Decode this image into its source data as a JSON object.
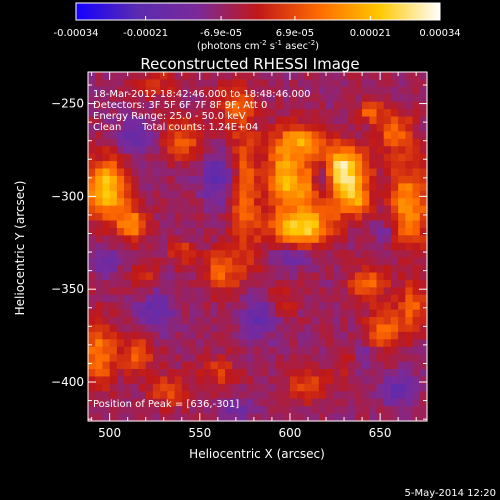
{
  "chart_data": {
    "type": "heatmap",
    "title": "Reconstructed RHESSI Image",
    "xlabel": "Heliocentric X (arcsec)",
    "ylabel": "Heliocentric Y (arcsec)",
    "xlim": [
      488,
      676
    ],
    "ylim": [
      -421,
      -233
    ],
    "x_ticks": [
      500,
      550,
      600,
      650
    ],
    "y_ticks": [
      -250,
      -300,
      -350,
      -400
    ],
    "colorbar": {
      "range": [
        -0.00034,
        0.00034
      ],
      "tick_values": [
        -0.00034,
        -0.00021,
        -6.9e-05,
        6.9e-05,
        0.00021,
        0.00034
      ],
      "tick_labels": [
        "-0.00034",
        "-0.00021",
        "-6.9e-05",
        "6.9e-05",
        "0.00021",
        "0.00034"
      ],
      "unit": "(photons cm",
      "unit_sup1": "-2",
      "unit_mid": " s",
      "unit_sup2": "-1",
      "unit_mid2": " asec",
      "unit_sup3": "-2",
      "unit_end": ")",
      "colormap": [
        "#1500ff",
        "#5a2bb0",
        "#7a2a9a",
        "#c01818",
        "#ff6a00",
        "#ffc800",
        "#ffffff"
      ]
    },
    "annotations": {
      "time": "18-Mar-2012 18:42:46.000 to 18:48:46.000",
      "detectors": "Detectors: 3F 5F 6F 7F 8F 9F, Att 0",
      "energy": "Energy Range: 25.0 - 50.0 keV",
      "method": "Clean",
      "counts": "Total counts: 1.24E+04",
      "peak": "Position of Peak = [636,-301]"
    },
    "peak_position": [
      636,
      -301
    ],
    "blobs": [
      {
        "x": 616,
        "y": -296,
        "sx": 9,
        "sy": 13,
        "v": 0.00034
      },
      {
        "x": 630,
        "y": -285,
        "sx": 9,
        "sy": 8,
        "v": 0.0003
      },
      {
        "x": 605,
        "y": -318,
        "sx": 11,
        "sy": 6,
        "v": 0.00026
      },
      {
        "x": 596,
        "y": -290,
        "sx": 6,
        "sy": 14,
        "v": 0.00024
      },
      {
        "x": 607,
        "y": -270,
        "sx": 9,
        "sy": 6,
        "v": 0.0002
      },
      {
        "x": 636,
        "y": -301,
        "sx": 6,
        "sy": 7,
        "v": 0.00022
      },
      {
        "x": 498,
        "y": -296,
        "sx": 8,
        "sy": 11,
        "v": 0.0003
      },
      {
        "x": 512,
        "y": -315,
        "sx": 6,
        "sy": 6,
        "v": 0.00022
      },
      {
        "x": 666,
        "y": -305,
        "sx": 8,
        "sy": 16,
        "v": 0.00022
      },
      {
        "x": 658,
        "y": -265,
        "sx": 7,
        "sy": 8,
        "v": 0.00016
      },
      {
        "x": 575,
        "y": -295,
        "sx": 6,
        "sy": 30,
        "v": 0.00016
      },
      {
        "x": 562,
        "y": -340,
        "sx": 7,
        "sy": 8,
        "v": 0.00015
      },
      {
        "x": 540,
        "y": -270,
        "sx": 8,
        "sy": 8,
        "v": 0.00014
      },
      {
        "x": 568,
        "y": -250,
        "sx": 8,
        "sy": 6,
        "v": 0.00012
      },
      {
        "x": 643,
        "y": -348,
        "sx": 7,
        "sy": 6,
        "v": 0.00018
      },
      {
        "x": 652,
        "y": -372,
        "sx": 7,
        "sy": 8,
        "v": 0.00016
      },
      {
        "x": 668,
        "y": -360,
        "sx": 6,
        "sy": 9,
        "v": 0.00015
      },
      {
        "x": 494,
        "y": -385,
        "sx": 6,
        "sy": 12,
        "v": 0.0002
      },
      {
        "x": 515,
        "y": -385,
        "sx": 7,
        "sy": 7,
        "v": 0.00014
      },
      {
        "x": 532,
        "y": -405,
        "sx": 7,
        "sy": 6,
        "v": 0.00012
      },
      {
        "x": 560,
        "y": -395,
        "sx": 8,
        "sy": 6,
        "v": 0.0001
      },
      {
        "x": 610,
        "y": -402,
        "sx": 8,
        "sy": 6,
        "v": 0.00012
      },
      {
        "x": 632,
        "y": -390,
        "sx": 6,
        "sy": 6,
        "v": 0.0001
      },
      {
        "x": 520,
        "y": -345,
        "sx": 6,
        "sy": 8,
        "v": 0.0001
      },
      {
        "x": 540,
        "y": -330,
        "sx": 5,
        "sy": 5,
        "v": 0.0001
      },
      {
        "x": 645,
        "y": -254,
        "sx": 4,
        "sy": 4,
        "v": 0.00018
      },
      {
        "x": 525,
        "y": -240,
        "sx": 8,
        "sy": 5,
        "v": 0.0001
      },
      {
        "x": 596,
        "y": -355,
        "sx": 6,
        "sy": 6,
        "v": 8e-05
      },
      {
        "x": 618,
        "y": -292,
        "sx": 5,
        "sy": 10,
        "v": -0.0004
      },
      {
        "x": 560,
        "y": -290,
        "sx": 7,
        "sy": 9,
        "v": -0.00015
      },
      {
        "x": 515,
        "y": -268,
        "sx": 7,
        "sy": 7,
        "v": -0.00012
      },
      {
        "x": 525,
        "y": -360,
        "sx": 7,
        "sy": 9,
        "v": -0.00014
      },
      {
        "x": 582,
        "y": -365,
        "sx": 7,
        "sy": 9,
        "v": -0.00013
      },
      {
        "x": 640,
        "y": -388,
        "sx": 6,
        "sy": 6,
        "v": -0.0001
      },
      {
        "x": 660,
        "y": -405,
        "sx": 7,
        "sy": 6,
        "v": -0.00012
      },
      {
        "x": 570,
        "y": -415,
        "sx": 7,
        "sy": 5,
        "v": -0.0001
      },
      {
        "x": 600,
        "y": -333,
        "sx": 6,
        "sy": 5,
        "v": -0.0001
      },
      {
        "x": 652,
        "y": -320,
        "sx": 4,
        "sy": 6,
        "v": -9e-05
      },
      {
        "x": 498,
        "y": -335,
        "sx": 5,
        "sy": 6,
        "v": -0.0001
      }
    ]
  },
  "footer": {
    "date": "5-May-2014 12:20"
  }
}
